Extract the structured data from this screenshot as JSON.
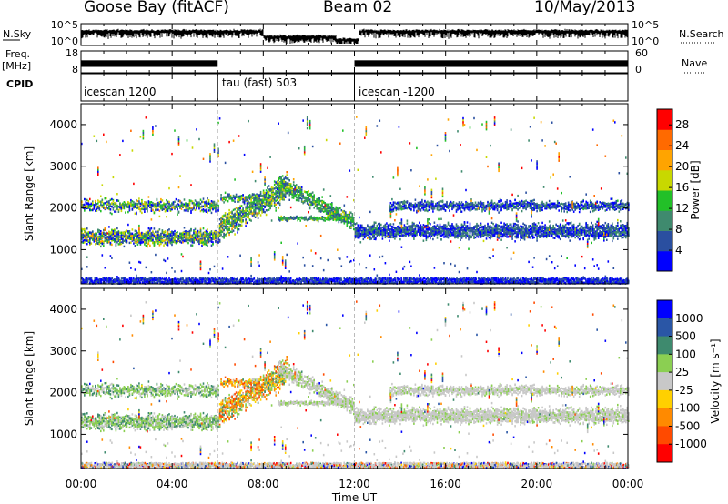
{
  "header": {
    "station": "Goose Bay (fitACF)",
    "beam": "Beam 02",
    "date": "10/May/2013"
  },
  "side_labels": {
    "nsky": "N.Sky",
    "freq": "Freq.",
    "freq_unit": "[MHz]",
    "cpid": "CPID",
    "nsearch": "N.Search",
    "nave": "Nave"
  },
  "cpid_labels": [
    "icescan 1200",
    "tau (fast) 503",
    "icescan -1200"
  ],
  "chart_data": [
    {
      "type": "line",
      "panel": "noise",
      "left_axis": {
        "label": "N.Sky",
        "ticks": [
          "10^5",
          "10^0"
        ]
      },
      "right_axis": {
        "label": "N.Search",
        "ticks": [
          "10^5",
          "10^0"
        ]
      }
    },
    {
      "type": "bar",
      "panel": "frequency",
      "left_axis": {
        "label": "Freq. [MHz]",
        "ticks": [
          18,
          8
        ]
      },
      "right_axis": {
        "label": "Nave",
        "ticks": [
          60,
          0
        ]
      },
      "segments": [
        {
          "start_h": 0.0,
          "end_h": 6.0,
          "freq_mhz": 12.3
        },
        {
          "start_h": 12.0,
          "end_h": 24.0,
          "freq_mhz": 12.3
        }
      ]
    },
    {
      "type": "heatmap",
      "panel": "power",
      "xlabel": "Time UT",
      "ylabel": "Slant Range [km]",
      "xlim": [
        0,
        24
      ],
      "ylim": [
        180,
        4500
      ],
      "yticks": [
        1000,
        2000,
        3000,
        4000
      ],
      "colorbar": {
        "label": "Power [dB]",
        "ticks": [
          4,
          8,
          12,
          16,
          20,
          24,
          28
        ],
        "range": [
          0,
          31
        ],
        "colors": [
          "#0000ff",
          "#2a4fa0",
          "#3f8a6e",
          "#22c028",
          "#c8d800",
          "#ffa400",
          "#ff6a00",
          "#ff0000"
        ]
      }
    },
    {
      "type": "heatmap",
      "panel": "velocity",
      "xlabel": "Time UT",
      "ylabel": "Slant Range [km]",
      "xlim": [
        0,
        24
      ],
      "ylim": [
        180,
        4500
      ],
      "yticks": [
        1000,
        2000,
        3000,
        4000
      ],
      "xticks": [
        "00:00",
        "04:00",
        "08:00",
        "12:00",
        "16:00",
        "20:00",
        "00:00"
      ],
      "colorbar": {
        "label": "Velocity [m s⁻¹]",
        "ticks": [
          "1000",
          "500",
          "100",
          "25",
          "-25",
          "-100",
          "-500",
          "-1000"
        ],
        "colors": [
          "#0000ff",
          "#2a56a6",
          "#3e8a6e",
          "#8bcf52",
          "#c8c8c8",
          "#ffd000",
          "#ff8a00",
          "#ff4a00",
          "#ff0000"
        ]
      }
    }
  ]
}
